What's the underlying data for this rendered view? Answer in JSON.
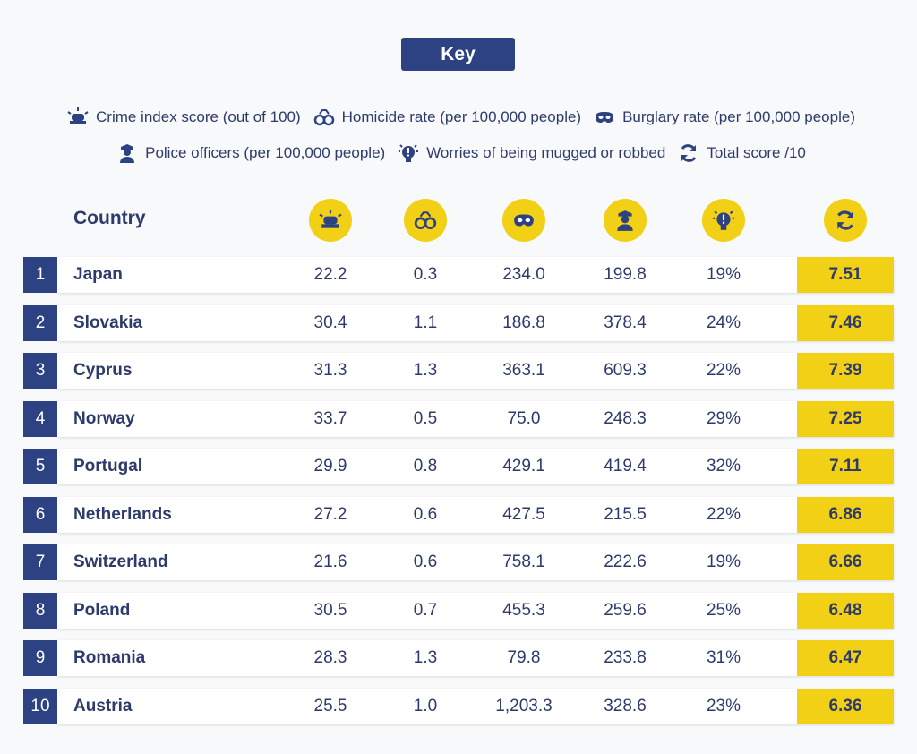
{
  "key": {
    "title": "Key",
    "items": [
      "Crime index score (out of 100)",
      "Homicide rate (per 100,000 people)",
      "Burglary rate (per 100,000 people)",
      "Police officers (per 100,000 people)",
      "Worries of being mugged or robbed",
      "Total score /10"
    ]
  },
  "table": {
    "header": "Country",
    "rows": [
      [
        "1",
        "Japan",
        "22.2",
        "0.3",
        "234.0",
        "199.8",
        "19%",
        "7.51"
      ],
      [
        "2",
        "Slovakia",
        "30.4",
        "1.1",
        "186.8",
        "378.4",
        "24%",
        "7.46"
      ],
      [
        "3",
        "Cyprus",
        "31.3",
        "1.3",
        "363.1",
        "609.3",
        "22%",
        "7.39"
      ],
      [
        "4",
        "Norway",
        "33.7",
        "0.5",
        "75.0",
        "248.3",
        "29%",
        "7.25"
      ],
      [
        "5",
        "Portugal",
        "29.9",
        "0.8",
        "429.1",
        "419.4",
        "32%",
        "7.11"
      ],
      [
        "6",
        "Netherlands",
        "27.2",
        "0.6",
        "427.5",
        "215.5",
        "22%",
        "6.86"
      ],
      [
        "7",
        "Switzerland",
        "21.6",
        "0.6",
        "758.1",
        "222.6",
        "19%",
        "6.66"
      ],
      [
        "8",
        "Poland",
        "30.5",
        "0.7",
        "455.3",
        "259.6",
        "25%",
        "6.48"
      ],
      [
        "9",
        "Romania",
        "28.3",
        "1.3",
        "79.8",
        "233.8",
        "31%",
        "6.47"
      ],
      [
        "10",
        "Austria",
        "25.5",
        "1.0",
        "1,203.3",
        "328.6",
        "23%",
        "6.36"
      ]
    ]
  }
}
